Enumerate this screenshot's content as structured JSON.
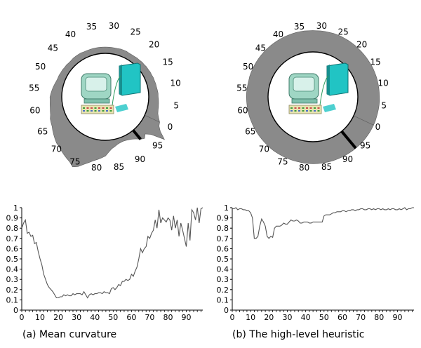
{
  "captions": {
    "a": "(a) Mean curvature",
    "b": "(b) The high-level heuristic"
  },
  "colors": {
    "ring": "#8a8a8a",
    "ring_dark": "#5e5e5e",
    "marker": "#000000",
    "line": "#555555",
    "axis": "#000000",
    "monitor": "#9fd6c4",
    "tower": "#21c4c4",
    "keyboard": "#e8e4b0"
  },
  "icons": {
    "computer": "computer-icon"
  },
  "chart_data": [
    {
      "type": "polar-area",
      "name": "panel-a-polar",
      "angle_labels": [
        "0",
        "5",
        "10",
        "15",
        "20",
        "25",
        "30",
        "35",
        "40",
        "45",
        "50",
        "55",
        "60",
        "65",
        "70",
        "75",
        "80",
        "85",
        "90",
        "95"
      ],
      "highlight_angle": 93,
      "radial_values": [
        0.42,
        0.35,
        0.3,
        0.28,
        0.27,
        0.26,
        0.25,
        0.24,
        0.24,
        0.23,
        0.22,
        0.22,
        0.21,
        0.21,
        0.2,
        0.2,
        0.19,
        0.19,
        0.18,
        0.18,
        0.17,
        0.17,
        0.16,
        0.16,
        0.16,
        0.17,
        0.17,
        0.17,
        0.16,
        0.16,
        0.16,
        0.16,
        0.16,
        0.16,
        0.16,
        0.16,
        0.16,
        0.16,
        0.16,
        0.16,
        0.17,
        0.17,
        0.17,
        0.17,
        0.16,
        0.16,
        0.17,
        0.17,
        0.18,
        0.18,
        0.19,
        0.19,
        0.2,
        0.22,
        0.24,
        0.26,
        0.28,
        0.3,
        0.3,
        0.31,
        0.32,
        0.34,
        0.36,
        0.4,
        0.42,
        0.44,
        0.48,
        0.52,
        0.56,
        0.6,
        0.62,
        0.66,
        0.7,
        0.74,
        0.78,
        0.86,
        0.8,
        0.7,
        0.62,
        0.55,
        0.5,
        0.45,
        0.4,
        0.3,
        0.22,
        0.18,
        0.14,
        0.12,
        0.11,
        0.12,
        0.14,
        0.17,
        0.22,
        0.3,
        0.35,
        0.28,
        0.4,
        0.75,
        0.55,
        0.45
      ]
    },
    {
      "type": "polar-area",
      "name": "panel-b-polar",
      "angle_labels": [
        "0",
        "5",
        "10",
        "15",
        "20",
        "25",
        "30",
        "35",
        "40",
        "45",
        "50",
        "55",
        "60",
        "65",
        "70",
        "75",
        "80",
        "85",
        "90",
        "95"
      ],
      "highlight_angle": 93,
      "radial_values": [
        0.98,
        0.98,
        0.97,
        0.97,
        0.97,
        0.97,
        0.97,
        0.96,
        0.96,
        0.96,
        0.96,
        0.96,
        0.96,
        0.96,
        0.96,
        0.96,
        0.95,
        0.95,
        0.95,
        0.95,
        0.95,
        0.96,
        0.96,
        0.96,
        0.96,
        0.97,
        0.97,
        0.97,
        0.96,
        0.96,
        0.96,
        0.95,
        0.95,
        0.95,
        0.96,
        0.96,
        0.96,
        0.96,
        0.96,
        0.96,
        0.96,
        0.96,
        0.96,
        0.96,
        0.96,
        0.96,
        0.96,
        0.96,
        0.96,
        0.96,
        0.96,
        0.96,
        0.96,
        0.95,
        0.95,
        0.96,
        0.96,
        0.96,
        0.96,
        0.96,
        0.96,
        0.96,
        0.96,
        0.96,
        0.96,
        0.96,
        0.96,
        0.96,
        0.96,
        0.96,
        0.96,
        0.97,
        0.97,
        0.97,
        0.97,
        0.97,
        0.97,
        0.97,
        0.97,
        0.97,
        0.98,
        0.98,
        0.98,
        0.98,
        0.98,
        0.98,
        0.98,
        0.98,
        0.98,
        0.98,
        0.98,
        0.98,
        0.98,
        0.98,
        0.98,
        0.98,
        0.98,
        0.98,
        0.98,
        0.98
      ]
    },
    {
      "type": "line",
      "name": "panel-a-line",
      "xlim": [
        0,
        99
      ],
      "ylim": [
        0,
        1
      ],
      "xticks": [
        "0",
        "10",
        "20",
        "30",
        "40",
        "50",
        "60",
        "70",
        "80",
        "90"
      ],
      "yticks": [
        "0",
        "0.1",
        "0.2",
        "0.3",
        "0.4",
        "0.5",
        "0.6",
        "0.7",
        "0.8",
        "0.9",
        "1"
      ],
      "x": [
        0,
        1,
        2,
        3,
        4,
        5,
        6,
        7,
        8,
        9,
        10,
        11,
        12,
        13,
        14,
        15,
        16,
        17,
        18,
        19,
        20,
        21,
        22,
        23,
        24,
        25,
        26,
        27,
        28,
        29,
        30,
        31,
        32,
        33,
        34,
        35,
        36,
        37,
        38,
        39,
        40,
        41,
        42,
        43,
        44,
        45,
        46,
        47,
        48,
        49,
        50,
        51,
        52,
        53,
        54,
        55,
        56,
        57,
        58,
        59,
        60,
        61,
        62,
        63,
        64,
        65,
        66,
        67,
        68,
        69,
        70,
        71,
        72,
        73,
        74,
        75,
        76,
        77,
        78,
        79,
        80,
        81,
        82,
        83,
        84,
        85,
        86,
        87,
        88,
        89,
        90,
        91,
        92,
        93,
        94,
        95,
        96,
        97,
        98,
        99
      ],
      "values": [
        0.8,
        0.85,
        0.88,
        0.75,
        0.76,
        0.72,
        0.73,
        0.65,
        0.66,
        0.57,
        0.5,
        0.44,
        0.35,
        0.3,
        0.25,
        0.22,
        0.2,
        0.18,
        0.15,
        0.12,
        0.12,
        0.13,
        0.13,
        0.15,
        0.14,
        0.15,
        0.14,
        0.14,
        0.16,
        0.15,
        0.16,
        0.16,
        0.16,
        0.15,
        0.18,
        0.15,
        0.12,
        0.15,
        0.16,
        0.15,
        0.16,
        0.16,
        0.17,
        0.17,
        0.16,
        0.18,
        0.17,
        0.17,
        0.16,
        0.21,
        0.22,
        0.2,
        0.22,
        0.25,
        0.24,
        0.28,
        0.28,
        0.3,
        0.29,
        0.3,
        0.35,
        0.33,
        0.38,
        0.42,
        0.5,
        0.6,
        0.56,
        0.6,
        0.62,
        0.72,
        0.7,
        0.75,
        0.78,
        0.88,
        0.8,
        0.98,
        0.85,
        0.9,
        0.88,
        0.86,
        0.9,
        0.88,
        0.78,
        0.92,
        0.8,
        0.88,
        0.72,
        0.85,
        0.78,
        0.7,
        0.62,
        0.85,
        0.68,
        0.98,
        0.95,
        0.88,
        1.0,
        0.85,
        0.99,
        1.0
      ]
    },
    {
      "type": "line",
      "name": "panel-b-line",
      "xlim": [
        0,
        99
      ],
      "ylim": [
        0,
        1
      ],
      "xticks": [
        "0",
        "10",
        "20",
        "30",
        "40",
        "50",
        "60",
        "70",
        "80",
        "90"
      ],
      "yticks": [
        "0",
        "0.1",
        "0.2",
        "0.3",
        "0.4",
        "0.5",
        "0.6",
        "0.7",
        "0.8",
        "0.9",
        "1"
      ],
      "x": [
        0,
        1,
        2,
        3,
        4,
        5,
        6,
        7,
        8,
        9,
        10,
        11,
        12,
        13,
        14,
        15,
        16,
        17,
        18,
        19,
        20,
        21,
        22,
        23,
        24,
        25,
        26,
        27,
        28,
        29,
        30,
        31,
        32,
        33,
        34,
        35,
        36,
        37,
        38,
        39,
        40,
        41,
        42,
        43,
        44,
        45,
        46,
        47,
        48,
        49,
        50,
        51,
        52,
        53,
        54,
        55,
        56,
        57,
        58,
        59,
        60,
        61,
        62,
        63,
        64,
        65,
        66,
        67,
        68,
        69,
        70,
        71,
        72,
        73,
        74,
        75,
        76,
        77,
        78,
        79,
        80,
        81,
        82,
        83,
        84,
        85,
        86,
        87,
        88,
        89,
        90,
        91,
        92,
        93,
        94,
        95,
        96,
        97,
        98,
        99
      ],
      "values": [
        0.99,
        0.99,
        1.0,
        0.98,
        0.99,
        0.99,
        0.98,
        0.98,
        0.97,
        0.97,
        0.95,
        0.9,
        0.7,
        0.7,
        0.72,
        0.82,
        0.89,
        0.86,
        0.82,
        0.72,
        0.7,
        0.72,
        0.71,
        0.8,
        0.82,
        0.82,
        0.82,
        0.83,
        0.85,
        0.84,
        0.84,
        0.86,
        0.88,
        0.87,
        0.87,
        0.88,
        0.87,
        0.85,
        0.85,
        0.86,
        0.86,
        0.86,
        0.85,
        0.85,
        0.86,
        0.86,
        0.86,
        0.86,
        0.86,
        0.86,
        0.92,
        0.93,
        0.93,
        0.93,
        0.94,
        0.95,
        0.95,
        0.96,
        0.96,
        0.96,
        0.97,
        0.97,
        0.96,
        0.97,
        0.97,
        0.98,
        0.98,
        0.97,
        0.98,
        0.98,
        0.99,
        0.99,
        0.98,
        0.98,
        0.99,
        0.99,
        0.98,
        0.99,
        0.98,
        0.99,
        0.99,
        0.98,
        0.99,
        0.98,
        0.98,
        0.99,
        0.98,
        0.99,
        0.99,
        0.98,
        0.98,
        0.99,
        0.98,
        0.99,
        1.0,
        0.98,
        0.99,
        0.99,
        1.0,
        1.0
      ]
    }
  ]
}
